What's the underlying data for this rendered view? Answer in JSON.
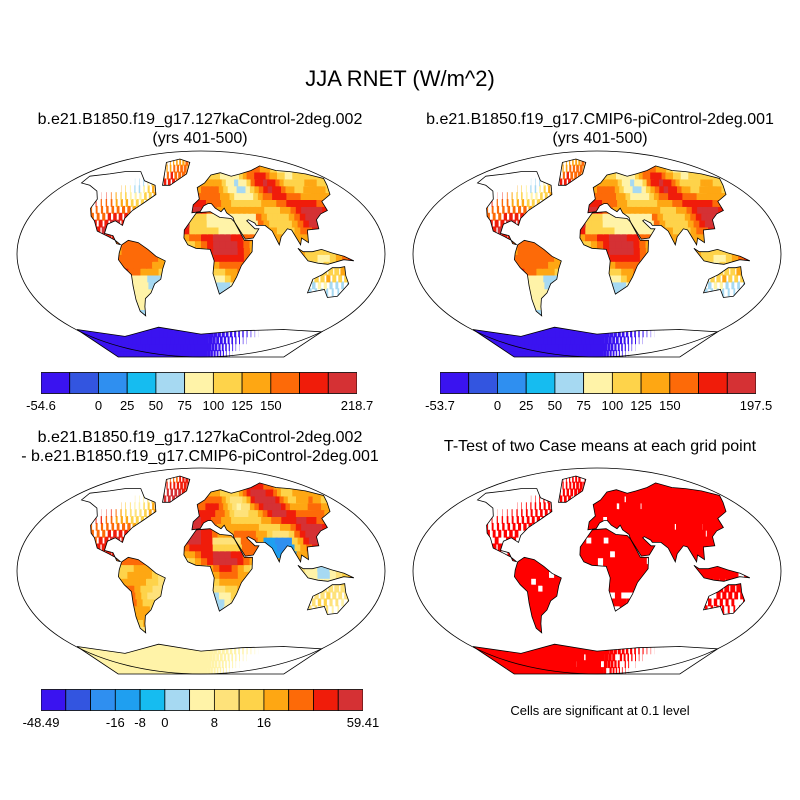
{
  "figure": {
    "main_title": "JJA RNET (W/m^2)"
  },
  "panels": {
    "case1": {
      "title_line1": "b.e21.B1850.f19_g17.127kaControl-2deg.002",
      "title_line2": "(yrs 401-500)",
      "colorbar": {
        "colors": [
          "#3a13f0",
          "#3355e0",
          "#2f8ff0",
          "#16bcf0",
          "#a6d9f2",
          "#fff3a8",
          "#fed34a",
          "#fea713",
          "#fd6a08",
          "#f01c0a",
          "#d53134"
        ],
        "labels": [
          "-54.6",
          "0",
          "25",
          "50",
          "75",
          "100",
          "125",
          "150",
          "218.7"
        ],
        "label_boundaries": [
          0,
          2,
          3,
          4,
          5,
          6,
          7,
          8,
          11
        ]
      }
    },
    "case2": {
      "title_line1": "b.e21.B1850.f19_g17.CMIP6-piControl-2deg.001",
      "title_line2": "(yrs 401-500)",
      "colorbar": {
        "colors": [
          "#3a13f0",
          "#3355e0",
          "#2f8ff0",
          "#16bcf0",
          "#a6d9f2",
          "#fff3a8",
          "#fed34a",
          "#fea713",
          "#fd6a08",
          "#f01c0a",
          "#d53134"
        ],
        "labels": [
          "-53.7",
          "0",
          "25",
          "50",
          "75",
          "100",
          "125",
          "150",
          "197.5"
        ],
        "label_boundaries": [
          0,
          2,
          3,
          4,
          5,
          6,
          7,
          8,
          11
        ]
      }
    },
    "difference": {
      "title_line1": "b.e21.B1850.f19_g17.127kaControl-2deg.002",
      "title_line2": "- b.e21.B1850.f19_g17.CMIP6-piControl-2deg.001",
      "colorbar": {
        "colors": [
          "#3a13f0",
          "#3355e0",
          "#2f8ff0",
          "#1f9ff0",
          "#16bcf0",
          "#a6d9f2",
          "#fff3a8",
          "#fee27a",
          "#fed34a",
          "#fea713",
          "#fd6a08",
          "#f01c0a",
          "#d53134"
        ],
        "labels": [
          "-48.49",
          "-16",
          "-8",
          "0",
          "8",
          "16",
          "59.41"
        ],
        "label_boundaries": [
          0,
          3,
          4,
          5,
          7,
          9,
          13
        ]
      }
    },
    "ttest": {
      "title": "T-Test of two Case means at each grid point",
      "note": "Cells are significant at 0.1 level"
    }
  },
  "colors": {
    "land_outline": "#000000",
    "ocean": "#ffffff",
    "significant": "#ff0000",
    "antarctica_case": "#3a13f0",
    "antarctica_diff": "#fff3a8"
  }
}
